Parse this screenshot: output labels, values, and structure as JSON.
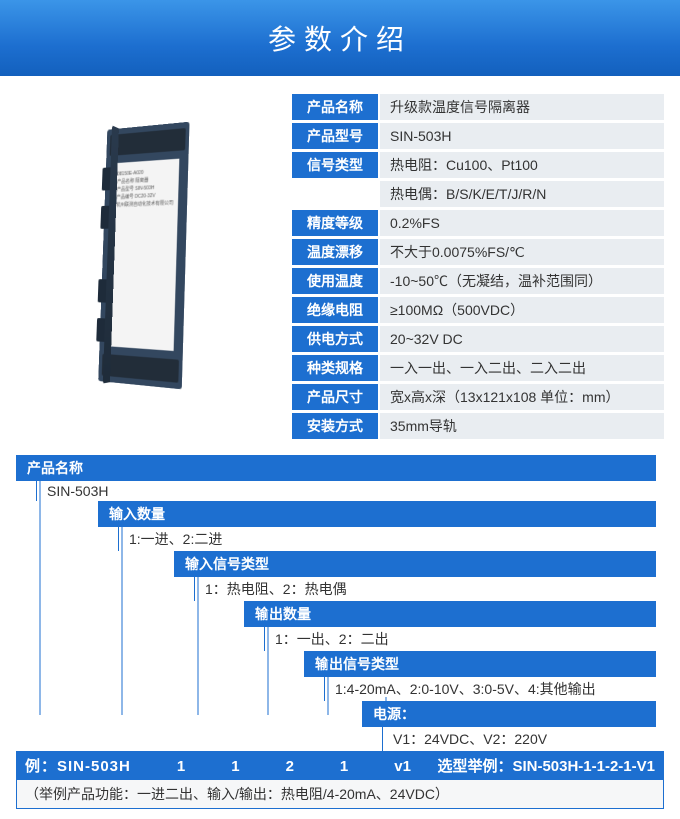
{
  "header_title": "参数介绍",
  "device_label_lines": [
    "08150E-A020",
    "产品名称  隔离器",
    "产品型号  SIN-503H",
    "产品编号  DC20-32V",
    "杭州联测自动化技术有限公司"
  ],
  "specs": [
    {
      "label": "产品名称",
      "value": "升级款温度信号隔离器"
    },
    {
      "label": "产品型号",
      "value": "SIN-503H"
    },
    {
      "label": "信号类型",
      "value": "热电阻：Cu100、Pt100"
    },
    {
      "label": "",
      "value": "热电偶：B/S/K/E/T/J/R/N"
    },
    {
      "label": "精度等级",
      "value": "0.2%FS"
    },
    {
      "label": "温度漂移",
      "value": "不大于0.0075%FS/℃"
    },
    {
      "label": "使用温度",
      "value": "-10~50℃（无凝结，温补范围同）"
    },
    {
      "label": "绝缘电阻",
      "value": "≥100MΩ（500VDC）"
    },
    {
      "label": "供电方式",
      "value": "20~32V DC"
    },
    {
      "label": "种类规格",
      "value": "一入一出、一入二出、二入二出"
    },
    {
      "label": "产品尺寸",
      "value": "宽x高x深（13x121x108 单位：mm）"
    },
    {
      "label": "安装方式",
      "value": "35mm导轨"
    }
  ],
  "selection": {
    "levels": [
      {
        "head": "产品名称",
        "body": "SIN-503H",
        "indent": 0
      },
      {
        "head": "输入数量",
        "body": "1:一进、2:二进",
        "indent": 1
      },
      {
        "head": "输入信号类型",
        "body": "1：热电阻、2：热电偶",
        "indent": 2
      },
      {
        "head": "输出数量",
        "body": "1：一出、2：二出",
        "indent": 3
      },
      {
        "head": "输出信号类型",
        "body": "1:4-20mA、2:0-10V、3:0-5V、4:其他输出",
        "indent": 4
      },
      {
        "head": "电源：",
        "body": "V1：24VDC、V2：220V",
        "indent": 5
      }
    ],
    "example_label": "例：SIN-503H",
    "example_parts": [
      "1",
      "1",
      "2",
      "1",
      "v1"
    ],
    "example_right_label": "选型举例：",
    "example_right_value": "SIN-503H-1-1-2-1-V1",
    "example_note": "（举例产品功能：一进二出、输入/输出：热电阻/4-20mA、24VDC）"
  },
  "colors": {
    "primary": "#1d6fd0",
    "header_grad_top": "#3b95e8",
    "row_bg": "#e9edf1"
  }
}
